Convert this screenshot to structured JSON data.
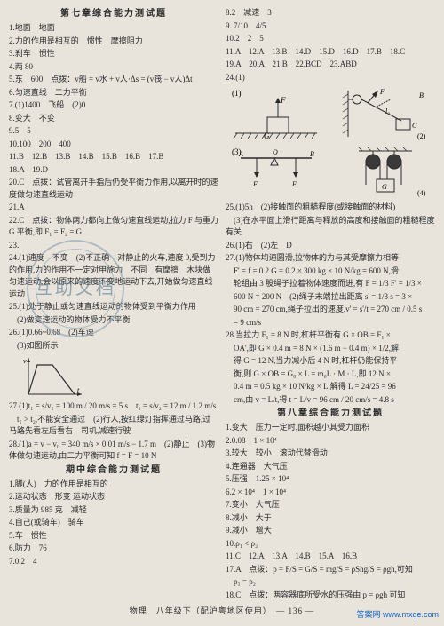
{
  "left": {
    "title": "第七章综合能力测试题",
    "lines": [
      "1.地面　地面",
      "2.力的作用是相互的　惯性　摩擦阻力",
      "3.刹车　惯性",
      "4.两 80",
      "5.东　600　点拨：v船 = v水 + v人·Δs = (v筏 − v人)Δt",
      "6.匀速直线　二力平衡",
      "7.(1)1400　飞船　(2)0",
      "8.变大　不变",
      "9.5　5",
      "10.100　200　400",
      "11.B　12.B　13.B　14.B　15.B　16.B　17.B",
      "18.A　19.D",
      "20.C　点拨：试管离开手指后仍受平衡力作用,以离开时的速度做匀速直线运动",
      "21.A",
      "22.C　点拨：物体两力都向上做匀速直线运动,拉力 F 与重力 G 平衡,即 F₁ = F₂ = G",
      "23.",
      "24.(1)速度　不变　(2)不正确　对静止的火车,速度 0,受到力的作用,力的作用不一定对甲施力　不同　有摩擦　木块做匀速运动,会以原来的速度不变地运动下去,开始做匀速直线运动",
      "25.(1)处于静止或匀速直线运动的物体受到平衡力作用",
      "　(2)做变速运动的物体受力不平衡",
      "26.(1)0.66~0.68　(2)车速",
      "　(3)如图所示"
    ],
    "graph": {
      "type": "line",
      "xlabel": "t",
      "ylabel": "v",
      "points": [
        [
          0,
          0
        ],
        [
          0.2,
          0.9
        ],
        [
          0.5,
          0.9
        ],
        [
          0.9,
          0
        ]
      ],
      "axis_color": "#2a2a2a",
      "line_color": "#2a2a2a",
      "background": "#e8e4dc"
    },
    "lines2": [
      "27.(1)t₁ = s/v₁ = 100 m / 20 m/s = 5 s　t₂ = s/v₂ = 12 m / 1.2 m/s",
      "　t₁ > t₂,不能安全通过　(2)行人,按红绿灯指挥通过马路,过马路先看左后看右　司机,减速行驶",
      "28.(1)a = v − v₀ = 340 m/s × 0.01 m/s − 1.7 m　(2)静止　(3)物体做匀速运动,由二力平衡可知 f = F = 10 N"
    ],
    "title2": "期中综合能力测试题",
    "lines3": [
      "1.脚(人)　力的作用是相互的",
      "2.运动状态　形变 运动状态",
      "3.质量为 985 克　减轻",
      "4.自己(或骑车)　骑车",
      "5.车　惯性",
      "6.防力　76",
      "7.0.2　4"
    ]
  },
  "right": {
    "lines": [
      "8.2　减速　3",
      "9. 7/10　4/5",
      "10.2　2　5",
      "11.A　12.A　13.B　14.D　15.D　16.D　17.B　18.C",
      "19.A　20.A　21.B　22.BCD　23.ABD",
      "24.(1)"
    ],
    "diagrams": [
      {
        "label": "(1)",
        "elements": [
          "block F",
          "arrow down G",
          "hatching"
        ]
      },
      {
        "label": "(2)",
        "elements": [
          "pulley",
          "rope",
          "block G",
          "wall hatching",
          "arrows F B",
          "angle l₂"
        ]
      },
      {
        "label": "(3)",
        "elements": [
          "lever AOB",
          "arrows F up",
          "fulcrum"
        ]
      },
      {
        "label": "(4)",
        "elements": [
          "pulley pair",
          "rope",
          "block G"
        ]
      }
    ],
    "lines2": [
      "25.(1)5h　(2)接触面的粗糙程度(或接触面的材料)",
      "　(3)在水平面上滑行距离与释放的高度和接触面的粗糙程度有关",
      "26.(1)右　(2)左　D",
      "27.(1)物体均速圆滑,拉物体的力与其受摩擦力相等",
      "　F' = f = 0.2 G = 0.2 × 300 kg × 10 N/kg = 600 N,滑",
      "　轮组由 3 股绳子拉着物体速度而进,有 F = 1/3 F' = 1/3 ×",
      "　600 N = 200 N　(2)绳子末端拉出距离 s' = 1/3 s = 3 ×",
      "　90 cm = 270 cm,绳子拉出的速度,v' = s'/t = 270 cm / 0.5 s",
      "　= 9 cm/s",
      "28.当拉力 F₁ = 8 N 时,杠杆平衡有 G × OB = F₁ ×",
      "　OA',即 G × 0.4 m = 8 N × (1.6 m − 0.4 m) × 1/2,解",
      "　得 G = 12 N,当力减小后 4 N 时,杠杆仍能保持平",
      "　衡,则 G × OB = G₀ × L = m₀L · M · L,即 12 N ×",
      "　0.4 m = 0.5 kg × 10 N/kg × L,解得 L = 24/25 = 96",
      "　cm,由 v = L/t,得 t = L/v = 96 cm / 20 cm/s = 4.8 s"
    ],
    "title2": "第八章综合能力测试题",
    "lines3": [
      "1.变大　压力一定时,面积越小其受力面积",
      "2.0.08　1 × 10⁴",
      "3.较大　较小　滚动代替滑动",
      "4.连通器　大气压",
      "5.压强　1.25 × 10⁴",
      "6.2 × 10⁴　1 × 10⁴",
      "7.变小　大气压",
      "8.减小　大于",
      "9.减小　增大",
      "10.ρ₁ < ρ₂",
      "11.C　12.A　13.A　14.B　15.A　16.B",
      "17.A　点拨：p = F/S = G/S = mg/S = ρShg/S = ρgh,可知",
      "　p₁ = p₂",
      "18.C　点拨：两容器底所受水的压强由 p = ρgh 可知"
    ]
  },
  "footer": "物理　八年级下（配沪粤地区使用）　— 136 —",
  "corner": "答案网 www.mxqe.com",
  "watermark": {
    "text": "互助文档",
    "sub": "hdziliao.cn"
  }
}
